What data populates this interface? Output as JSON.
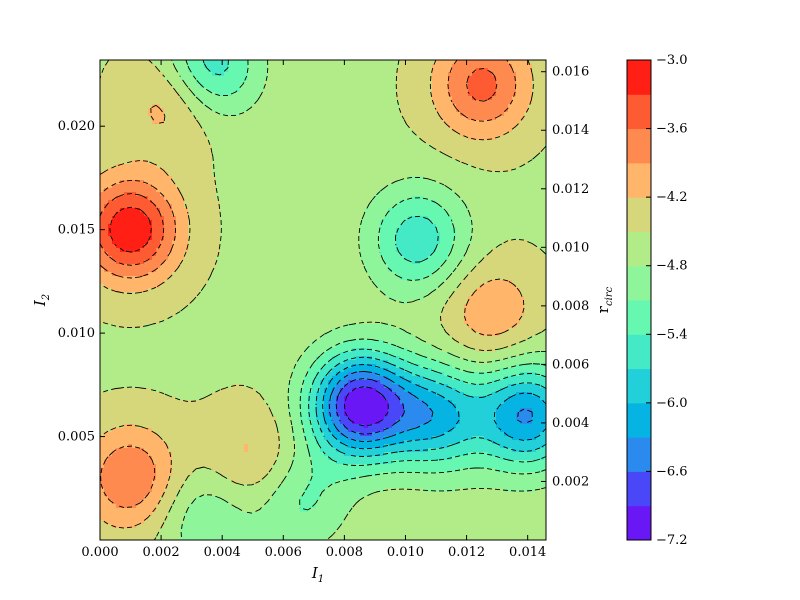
{
  "chart_data": {
    "type": "contour",
    "x_axis": {
      "label": "I",
      "label_subscript": "1",
      "range": [
        0.0,
        0.0146
      ],
      "ticks": [
        0.0,
        0.002,
        0.004,
        0.006,
        0.008,
        0.01,
        0.012,
        0.014
      ],
      "tick_labels": [
        "0.000",
        "0.002",
        "0.004",
        "0.006",
        "0.008",
        "0.010",
        "0.012",
        "0.014"
      ]
    },
    "y_axis": {
      "label": "I",
      "label_subscript": "2",
      "range": [
        0.0,
        0.0232
      ],
      "ticks": [
        0.005,
        0.01,
        0.015,
        0.02
      ],
      "tick_labels": [
        "0.005",
        "0.010",
        "0.015",
        "0.020"
      ]
    },
    "secondary_y_axis": {
      "label": "r",
      "label_subscript": "circ",
      "range": [
        0.0,
        0.0164
      ],
      "ticks": [
        0.002,
        0.004,
        0.006,
        0.008,
        0.01,
        0.012,
        0.014,
        0.016
      ],
      "tick_labels": [
        "0.002",
        "0.004",
        "0.006",
        "0.008",
        "0.010",
        "0.012",
        "0.014",
        "0.016"
      ]
    },
    "colorbar": {
      "range": [
        -7.2,
        -3.0
      ],
      "levels": [
        -7.2,
        -6.9,
        -6.6,
        -6.3,
        -6.0,
        -5.7,
        -5.4,
        -5.1,
        -4.8,
        -4.5,
        -4.2,
        -3.9,
        -3.6,
        -3.3,
        -3.0
      ],
      "tick_values": [
        -3.0,
        -3.6,
        -4.2,
        -4.8,
        -5.4,
        -6.0,
        -6.6,
        -7.2
      ],
      "tick_labels": [
        "−3.0",
        "−3.6",
        "−4.2",
        "−4.8",
        "−5.4",
        "−6.0",
        "−6.6",
        "−7.2"
      ],
      "colors": [
        "#6a17f6",
        "#4a47f9",
        "#2b8aee",
        "#06b4e4",
        "#22d0da",
        "#44eac6",
        "#66f8b0",
        "#8ef59a",
        "#b2ec89",
        "#d6d67a",
        "#ffb56a",
        "#ff8a50",
        "#ff5b32",
        "#ff1f14"
      ]
    },
    "contour_lines": "dashed black",
    "features": [
      {
        "x": 0.001,
        "y": 0.015,
        "value": -3.05
      },
      {
        "x": 0.0025,
        "y": 0.0215,
        "value": -3.8
      },
      {
        "x": 0.0125,
        "y": 0.022,
        "value": -3.5
      },
      {
        "x": 0.0128,
        "y": 0.011,
        "value": -3.95
      },
      {
        "x": 0.001,
        "y": 0.003,
        "value": -3.6
      },
      {
        "x": 0.0085,
        "y": 0.0065,
        "value": -7.1
      },
      {
        "x": 0.011,
        "y": 0.006,
        "value": -6.0
      },
      {
        "x": 0.014,
        "y": 0.006,
        "value": -6.3
      },
      {
        "x": 0.0104,
        "y": 0.0145,
        "value": -5.6
      },
      {
        "x": 0.0035,
        "y": 0.0012,
        "value": -5.1
      },
      {
        "x": 0.0065,
        "y": 0.002,
        "value": -5.2
      },
      {
        "x": 0.005,
        "y": 0.0037,
        "value": -4.0
      },
      {
        "x": 0.0035,
        "y": 0.0228,
        "value": -5.8
      },
      {
        "x": 0.012,
        "y": 0.003,
        "value": -4.6
      }
    ]
  }
}
